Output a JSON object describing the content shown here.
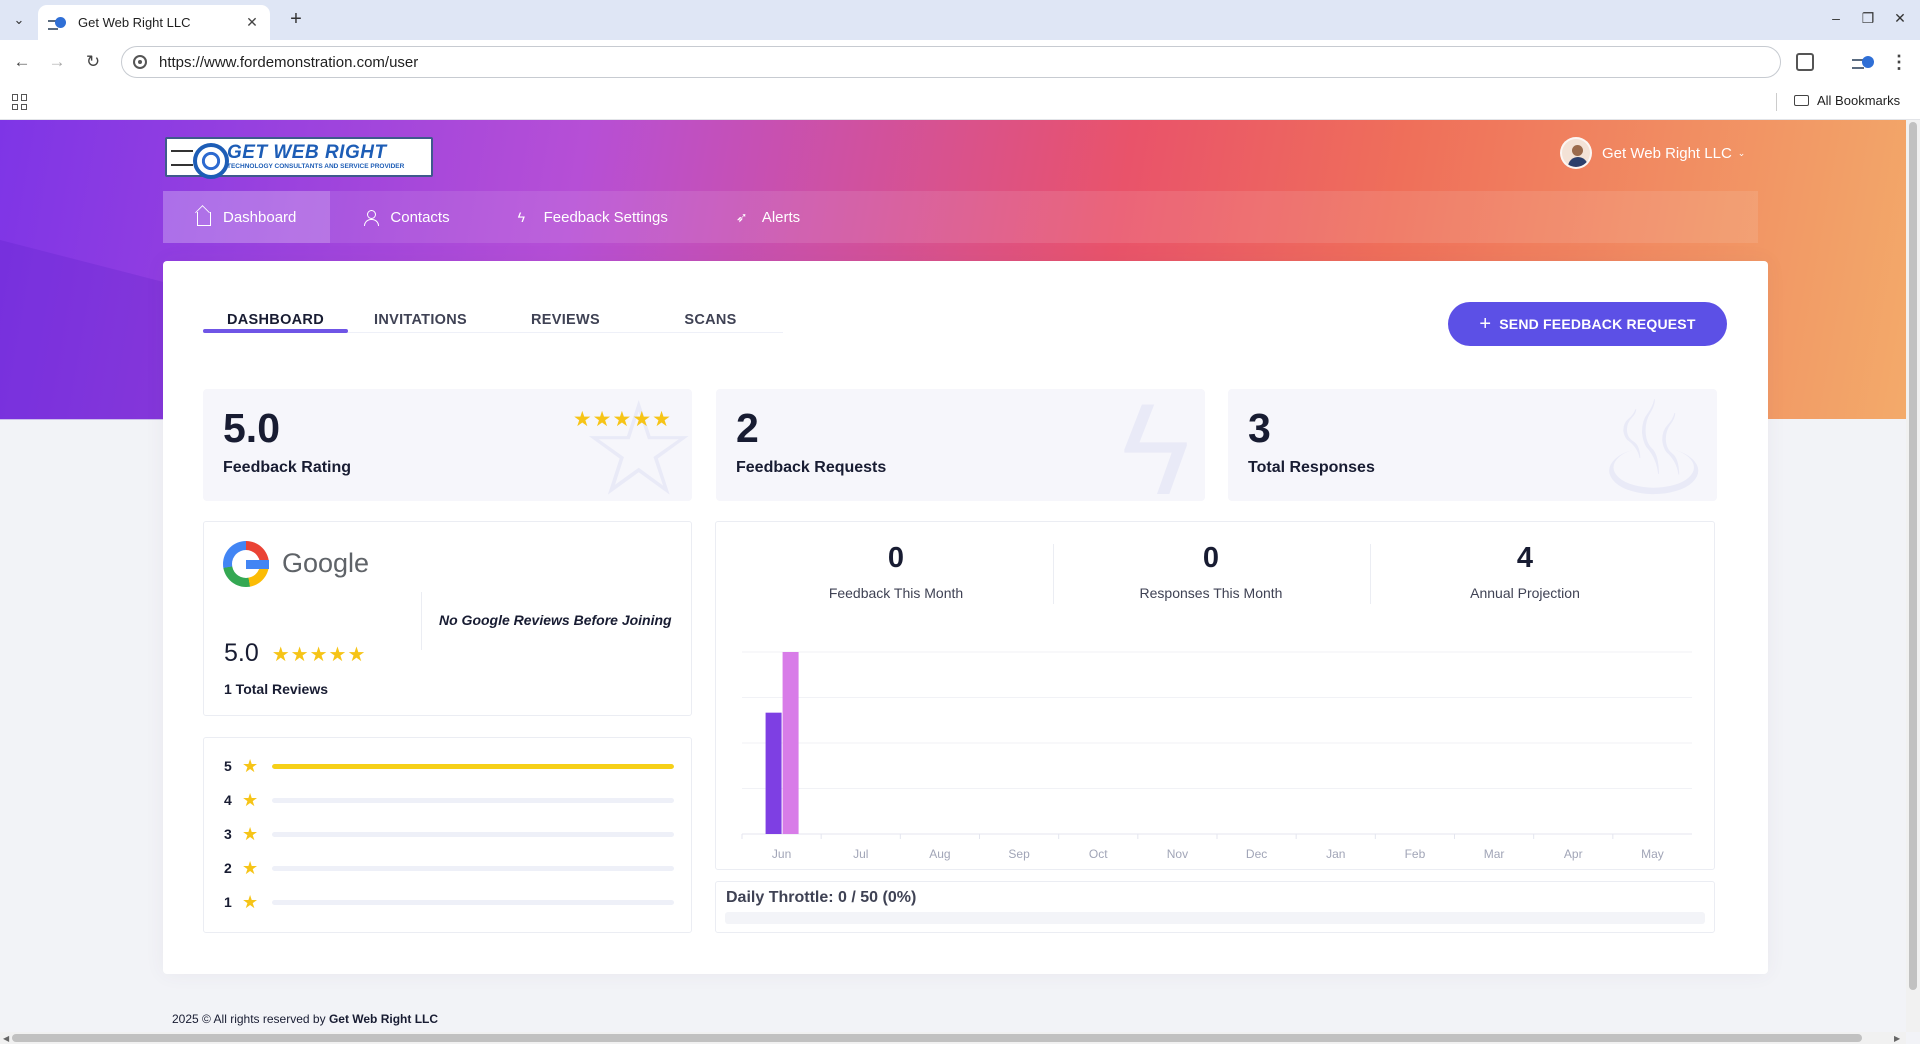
{
  "browser": {
    "tab_title": "Get Web Right LLC",
    "url": "https://www.fordemonstration.com/user",
    "bookmarks_label": "All Bookmarks"
  },
  "header": {
    "logo_text": "GET WEB RIGHT",
    "logo_subtext": "TECHNOLOGY CONSULTANTS AND SERVICE PROVIDER",
    "user_name": "Get Web Right LLC"
  },
  "nav": {
    "items": [
      {
        "label": "Dashboard",
        "icon": "home-icon"
      },
      {
        "label": "Contacts",
        "icon": "user-icon"
      },
      {
        "label": "Feedback Settings",
        "icon": "bolt-icon"
      },
      {
        "label": "Alerts",
        "icon": "rocket-icon"
      }
    ]
  },
  "subtabs": [
    "DASHBOARD",
    "INVITATIONS",
    "REVIEWS",
    "SCANS"
  ],
  "send_button": "SEND FEEDBACK REQUEST",
  "stats": [
    {
      "value": "5.0",
      "label": "Feedback Rating",
      "stars": "★★★★★"
    },
    {
      "value": "2",
      "label": "Feedback Requests"
    },
    {
      "value": "3",
      "label": "Total Responses"
    }
  ],
  "google": {
    "brand": "Google",
    "note": "No Google Reviews Before Joining",
    "rating": "5.0",
    "stars": "★★★★★",
    "total": "1 Total Reviews"
  },
  "distribution": [
    {
      "stars": "5",
      "fraction": 1.0
    },
    {
      "stars": "4",
      "fraction": 0
    },
    {
      "stars": "3",
      "fraction": 0
    },
    {
      "stars": "2",
      "fraction": 0
    },
    {
      "stars": "1",
      "fraction": 0
    }
  ],
  "kpis": [
    {
      "value": "0",
      "label": "Feedback This Month"
    },
    {
      "value": "0",
      "label": "Responses This Month"
    },
    {
      "value": "4",
      "label": "Annual Projection"
    }
  ],
  "chart_data": {
    "type": "bar",
    "categories": [
      "Jun",
      "Jul",
      "Aug",
      "Sep",
      "Oct",
      "Nov",
      "Dec",
      "Jan",
      "Feb",
      "Mar",
      "Apr",
      "May"
    ],
    "series": [
      {
        "values": [
          2,
          0,
          0,
          0,
          0,
          0,
          0,
          0,
          0,
          0,
          0,
          0
        ],
        "color": "#7e3fe3"
      },
      {
        "values": [
          3,
          0,
          0,
          0,
          0,
          0,
          0,
          0,
          0,
          0,
          0,
          0
        ],
        "color": "#d87ce8"
      }
    ],
    "ylim": [
      0,
      3
    ],
    "grid": true
  },
  "throttle": "Daily Throttle: 0 / 50 (0%)",
  "footer": {
    "text": "2025 © All rights reserved by",
    "company": "Get Web Right LLC"
  },
  "colors": {
    "accent": "#5c50e6",
    "star": "#f6c417",
    "bar_primary": "#7e3fe3",
    "bar_secondary": "#d87ce8"
  }
}
